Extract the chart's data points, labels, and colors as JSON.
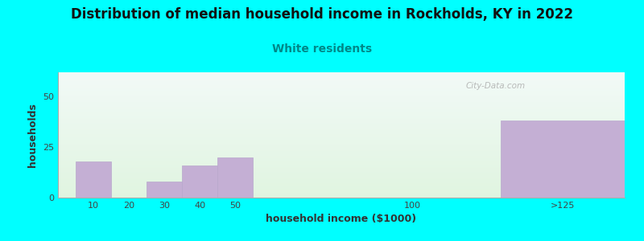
{
  "title": "Distribution of median household income in Rockholds, KY in 2022",
  "subtitle": "White residents",
  "xlabel": "household income ($1000)",
  "ylabel": "households",
  "background_color": "#00FFFF",
  "bar_color": "#c4afd4",
  "bar_edge_color": "#b8a8cc",
  "categories": [
    "10",
    "20",
    "30",
    "40",
    "50",
    "100",
    ">125"
  ],
  "bar_left_edges": [
    5,
    15,
    25,
    35,
    45,
    95,
    125
  ],
  "bar_widths": [
    10,
    10,
    10,
    10,
    10,
    10,
    35
  ],
  "values": [
    18,
    0,
    8,
    16,
    20,
    0,
    38
  ],
  "xlim": [
    0,
    160
  ],
  "ylim": [
    0,
    62
  ],
  "yticks": [
    0,
    25,
    50
  ],
  "xtick_positions": [
    10,
    20,
    30,
    40,
    50,
    100,
    142.5
  ],
  "xtick_labels": [
    "10",
    "20",
    "30",
    "40",
    "50",
    "100",
    ">125"
  ],
  "title_fontsize": 12,
  "subtitle_fontsize": 10,
  "subtitle_color": "#008888",
  "axis_label_fontsize": 9,
  "tick_fontsize": 8,
  "watermark_text": "City-Data.com"
}
